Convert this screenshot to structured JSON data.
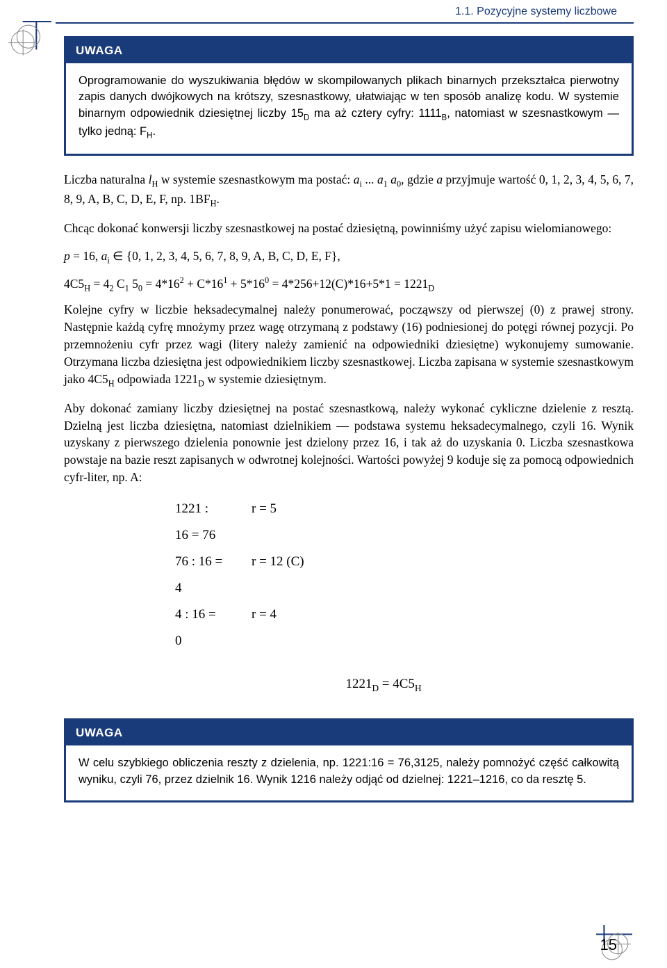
{
  "header": {
    "section_title": "1.1. Pozycyjne systemy liczbowe"
  },
  "colors": {
    "accent": "#1a3b7a",
    "text": "#000000",
    "background": "#ffffff"
  },
  "note1": {
    "title": "UWAGA",
    "body_html": "Oprogramowanie do wyszukiwania błędów w skompilowanych plikach binarnych przekształca pierwotny zapis danych dwójkowych na krótszy, szesnastkowy, ułatwiając w ten sposób analizę kodu. W systemie binarnym odpowiednik dziesiętnej liczby 15<span class='sub'>D</span> ma aż cztery cyfry: 1111<span class='sub'>B</span>, natomiast w szesnastkowym — tylko jedną: F<span class='sub'>H</span>."
  },
  "paragraphs": {
    "p1_html": "Liczba naturalna <span class='italic'>l<span class='sub'>H</span></span> w systemie szesnastkowym ma postać: <span class='italic'>a<span class='sub'>i</span></span> ... <span class='italic'>a<span class='sub'>1</span> a<span class='sub'>0</span></span>, gdzie <span class='italic'>a</span> przyjmuje wartość 0, 1, 2, 3, 4, 5, 6, 7, 8, 9, A, B, C, D, E, F, np. 1BF<span class='sub'>H</span>.",
    "p2": "Chcąc dokonać konwersji liczby szesnastkowej na postać dziesiętną, powinniśmy użyć zapisu wielomianowego:",
    "f1_html": "<span class='italic'>p</span> = 16, <span class='italic'>a<span class='sub'>i</span></span> ∈ {0, 1, 2, 3, 4, 5, 6, 7, 8, 9, A, B, C, D, E, F},",
    "f2_html": "4C5<span class='sub'>H</span> = 4<span class='sub'>2</span> C<span class='sub'>1</span> 5<span class='sub'>0</span> = 4*16<span class='sup'>2</span> + C*16<span class='sup'>1</span> + 5*16<span class='sup'>0</span> = 4*256+12(C)*16+5*1 = 1221<span class='sub'>D</span>",
    "p3_html": "Kolejne cyfry w liczbie heksadecymalnej należy ponumerować, począwszy od pierwszej (0) z prawej strony. Następnie każdą cyfrę mnożymy przez wagę otrzymaną z podstawy (16) podniesionej do potęgi równej pozycji. Po przemnożeniu cyfr przez wagi (litery należy zamienić na odpowiedniki dziesiętne) wykonujemy sumowanie. Otrzymana liczba dziesiętna jest odpowiednikiem liczby szesnastkowej. Liczba zapisana w systemie szesnastkowym jako 4C5<span class='sub'>H</span> odpowiada 1221<span class='sub'>D</span> w systemie dziesiętnym.",
    "p4": "Aby dokonać zamiany liczby dziesiętnej na postać szesnastkową, należy wykonać cykliczne dzielenie z resztą. Dzielną jest liczba dziesiętna, natomiast dzielnikiem — podstawa systemu heksadecymalnego, czyli 16. Wynik uzyskany z pierwszego dzielenia ponownie jest dzielony przez 16, i tak aż do uzyskania 0. Liczba szesnastkowa powstaje na bazie reszt zapisanych w odwrotnej kolejności. Wartości powyżej 9 koduje się za pomocą odpowiednich cyfr-liter, np. A:"
  },
  "calculation": {
    "rows": [
      {
        "left": "1221 : 16 = 76",
        "right": "r  = 5"
      },
      {
        "left": "76 : 16 = 4",
        "right": "r  = 12 (C)"
      },
      {
        "left": "4 : 16 = 0",
        "right": "r  = 4"
      }
    ],
    "result_html": "1221<span class='sub'>D</span> = 4C5<span class='sub'>H</span>"
  },
  "note2": {
    "title": "UWAGA",
    "body": "W celu szybkiego obliczenia reszty z dzielenia, np. 1221:16 = 76,3125, należy pomnożyć część całkowitą wyniku, czyli 76, przez dzielnik 16. Wynik 1216 należy odjąć od dzielnej: 1221–1216, co da resztę 5."
  },
  "page_number": "15"
}
